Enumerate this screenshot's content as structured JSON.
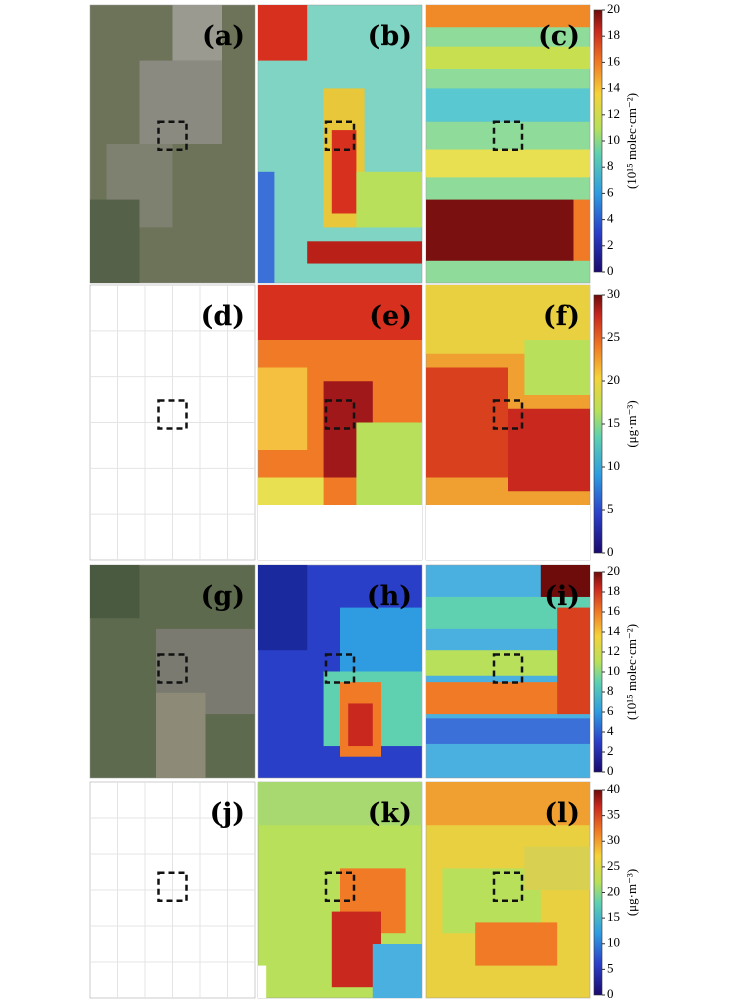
{
  "panels": [
    {
      "label": "(a)"
    },
    {
      "label": "(b)"
    },
    {
      "label": "(c)"
    },
    {
      "label": "(d)"
    },
    {
      "label": "(e)"
    },
    {
      "label": "(f)"
    },
    {
      "label": "(g)"
    },
    {
      "label": "(h)"
    },
    {
      "label": "(i)"
    },
    {
      "label": "(j)"
    },
    {
      "label": "(k)"
    },
    {
      "label": "(l)"
    }
  ],
  "colorbars": [
    {
      "label": "(10¹⁵ molec·cm⁻²)",
      "lim": [
        0,
        20
      ],
      "ticks": [
        0,
        2,
        4,
        6,
        8,
        10,
        12,
        14,
        16,
        18,
        20
      ]
    },
    {
      "label": "(μg·m⁻³)",
      "lim": [
        0,
        30
      ],
      "ticks": [
        0,
        5,
        10,
        15,
        20,
        25,
        30
      ]
    },
    {
      "label": "(10¹⁵ molec·cm⁻²)",
      "lim": [
        0,
        20
      ],
      "ticks": [
        0,
        2,
        4,
        6,
        8,
        10,
        12,
        14,
        16,
        18,
        20
      ]
    },
    {
      "label": "(μg·m⁻³)",
      "lim": [
        0,
        40
      ],
      "ticks": [
        0,
        5,
        10,
        15,
        20,
        25,
        30,
        35,
        40
      ]
    }
  ]
}
